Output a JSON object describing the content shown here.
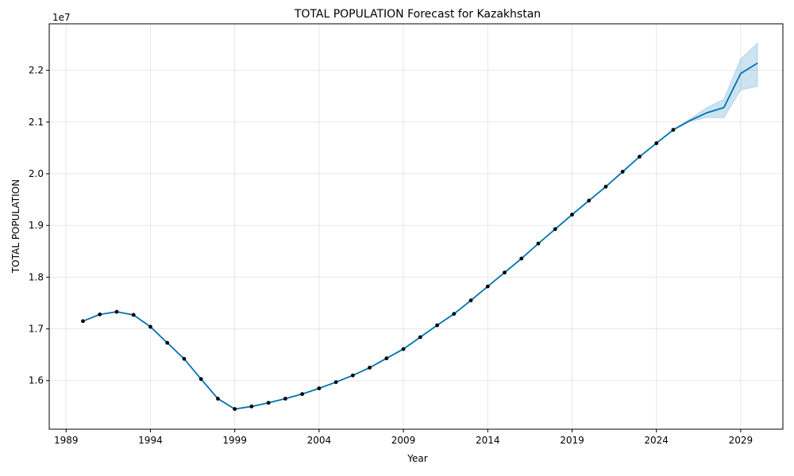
{
  "chart_data": {
    "type": "line",
    "title": "TOTAL POPULATION Forecast for Kazakhstan",
    "xlabel": "Year",
    "ylabel": "TOTAL POPULATION",
    "y_offset_label": "1e7",
    "xlim": [
      1988.0,
      2031.5
    ],
    "ylim": [
      15.06,
      22.9
    ],
    "x_ticks": [
      1989,
      1994,
      1999,
      2004,
      2009,
      2014,
      2019,
      2024,
      2029
    ],
    "y_ticks": [
      1.6,
      1.7,
      1.8,
      1.9,
      2.0,
      2.1,
      2.2
    ],
    "grid": true,
    "line_color": "#0072B2",
    "band_color": "#0072B2",
    "point_color": "#000000",
    "observed": {
      "x": [
        1990,
        1991,
        1992,
        1993,
        1994,
        1995,
        1996,
        1997,
        1998,
        1999,
        2000,
        2001,
        2002,
        2003,
        2004,
        2005,
        2006,
        2007,
        2008,
        2009,
        2010,
        2011,
        2012,
        2013,
        2014,
        2015,
        2016,
        2017,
        2018,
        2019,
        2020,
        2021,
        2022,
        2023,
        2024,
        2025
      ],
      "y": [
        17.15,
        17.28,
        17.33,
        17.27,
        17.04,
        16.73,
        16.42,
        16.03,
        15.65,
        15.45,
        15.5,
        15.57,
        15.65,
        15.74,
        15.85,
        15.97,
        16.1,
        16.25,
        16.43,
        16.61,
        16.84,
        17.07,
        17.29,
        17.55,
        17.82,
        18.09,
        18.36,
        18.65,
        18.93,
        19.21,
        19.48,
        19.75,
        20.04,
        20.33,
        20.59,
        20.85
      ]
    },
    "forecast": {
      "x": [
        1990,
        1991,
        1992,
        1993,
        1994,
        1995,
        1996,
        1997,
        1998,
        1999,
        2000,
        2001,
        2002,
        2003,
        2004,
        2005,
        2006,
        2007,
        2008,
        2009,
        2010,
        2011,
        2012,
        2013,
        2014,
        2015,
        2016,
        2017,
        2018,
        2019,
        2020,
        2021,
        2022,
        2023,
        2024,
        2025,
        2026,
        2027,
        2028,
        2029,
        2030
      ],
      "y": [
        17.15,
        17.28,
        17.33,
        17.27,
        17.04,
        16.73,
        16.42,
        16.03,
        15.65,
        15.45,
        15.5,
        15.57,
        15.65,
        15.74,
        15.85,
        15.97,
        16.1,
        16.25,
        16.43,
        16.61,
        16.84,
        17.07,
        17.29,
        17.55,
        17.82,
        18.09,
        18.36,
        18.65,
        18.93,
        19.21,
        19.48,
        19.75,
        20.04,
        20.33,
        20.59,
        20.85,
        21.03,
        21.18,
        21.28,
        21.94,
        22.14
      ],
      "lower": [
        17.15,
        17.28,
        17.33,
        17.27,
        17.04,
        16.73,
        16.42,
        16.03,
        15.65,
        15.45,
        15.5,
        15.57,
        15.65,
        15.74,
        15.85,
        15.97,
        16.1,
        16.25,
        16.43,
        16.61,
        16.84,
        17.07,
        17.29,
        17.55,
        17.82,
        18.09,
        18.36,
        18.65,
        18.93,
        19.21,
        19.48,
        19.75,
        20.04,
        20.33,
        20.59,
        20.84,
        21.01,
        21.09,
        21.08,
        21.62,
        21.69
      ],
      "upper": [
        17.15,
        17.28,
        17.33,
        17.27,
        17.04,
        16.73,
        16.42,
        16.03,
        15.65,
        15.45,
        15.5,
        15.57,
        15.65,
        15.74,
        15.85,
        15.97,
        16.1,
        16.25,
        16.43,
        16.61,
        16.84,
        17.07,
        17.29,
        17.55,
        17.82,
        18.09,
        18.36,
        18.65,
        18.93,
        19.21,
        19.48,
        19.75,
        20.04,
        20.33,
        20.59,
        20.86,
        21.06,
        21.28,
        21.44,
        22.22,
        22.53
      ]
    }
  }
}
